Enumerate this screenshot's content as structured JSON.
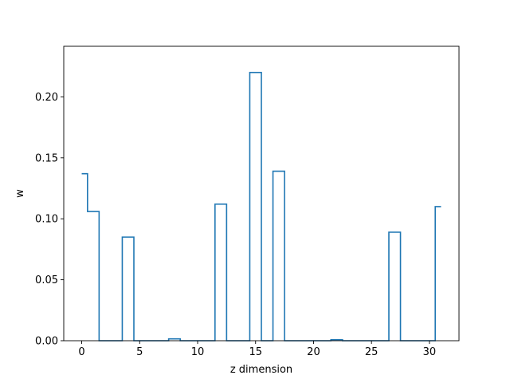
{
  "chart_data": {
    "type": "line",
    "drawstyle": "steps-mid",
    "title": "",
    "xlabel": "z dimension",
    "ylabel": "w",
    "xlim": [
      -1.55,
      32.55
    ],
    "ylim": [
      0,
      0.2415
    ],
    "xticks": [
      0,
      5,
      10,
      15,
      20,
      25,
      30
    ],
    "yticks": [
      0.0,
      0.05,
      0.1,
      0.15,
      0.2
    ],
    "ytick_labels": [
      "0.00",
      "0.05",
      "0.10",
      "0.15",
      "0.20"
    ],
    "grid": false,
    "series": [
      {
        "color": "#1f77b4",
        "x": [
          0,
          1,
          2,
          3,
          4,
          5,
          6,
          7,
          8,
          9,
          10,
          11,
          12,
          13,
          14,
          15,
          16,
          17,
          18,
          19,
          20,
          21,
          22,
          23,
          24,
          25,
          26,
          27,
          28,
          29,
          30,
          31
        ],
        "y": [
          0.137,
          0.106,
          0,
          0,
          0.085,
          0,
          0,
          0,
          0.0015,
          0,
          0,
          0,
          0.112,
          0,
          0,
          0.22,
          0,
          0.139,
          0,
          0,
          0,
          0,
          0.0008,
          0,
          0,
          0,
          0,
          0.089,
          0,
          0,
          0,
          0.11
        ]
      }
    ]
  }
}
